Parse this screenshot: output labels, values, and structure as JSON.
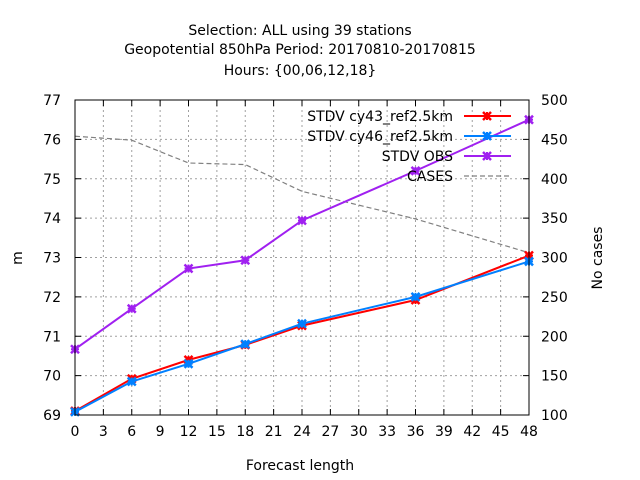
{
  "title_lines": [
    "Selection: ALL using    39 stations",
    "Geopotential 850hPa   Period: 20170810-20170815",
    "Hours: {00,06,12,18}"
  ],
  "chart_data": {
    "type": "line",
    "xlabel": "Forecast length",
    "ylabel": "m",
    "y2label": "No cases",
    "xlim": [
      0,
      48
    ],
    "ylim": [
      69,
      77
    ],
    "y2lim": [
      100,
      500
    ],
    "xticks": [
      0,
      3,
      6,
      9,
      12,
      15,
      18,
      21,
      24,
      27,
      30,
      33,
      36,
      39,
      42,
      45,
      48
    ],
    "yticks": [
      69,
      70,
      71,
      72,
      73,
      74,
      75,
      76,
      77
    ],
    "y2ticks": [
      100,
      150,
      200,
      250,
      300,
      350,
      400,
      450,
      500
    ],
    "grid": true,
    "legend_position": "top-right",
    "series": [
      {
        "name": "STDV cy43_ref2.5km",
        "axis": "left",
        "color": "#ff0000",
        "marker": "x",
        "x": [
          0,
          6,
          12,
          18,
          24,
          36,
          48
        ],
        "values": [
          69.1,
          69.92,
          70.4,
          70.78,
          71.27,
          71.92,
          73.05
        ]
      },
      {
        "name": "STDV cy46_ref2.5km",
        "axis": "left",
        "color": "#0080ff",
        "marker": "x",
        "x": [
          0,
          6,
          12,
          18,
          24,
          36,
          48
        ],
        "values": [
          69.08,
          69.85,
          70.3,
          70.8,
          71.32,
          72.0,
          72.9
        ]
      },
      {
        "name": "STDV OBS",
        "axis": "left",
        "color": "#a020f0",
        "marker": "x",
        "x": [
          0,
          6,
          12,
          18,
          24,
          36,
          48
        ],
        "values": [
          70.67,
          71.7,
          72.72,
          72.93,
          73.94,
          75.2,
          76.5
        ]
      },
      {
        "name": "CASES",
        "axis": "right",
        "color": "#808080",
        "marker": "none",
        "dashed": true,
        "x": [
          0,
          6,
          12,
          18,
          24,
          36,
          48
        ],
        "values": [
          454,
          449,
          420,
          418,
          384,
          349,
          306
        ]
      }
    ]
  }
}
